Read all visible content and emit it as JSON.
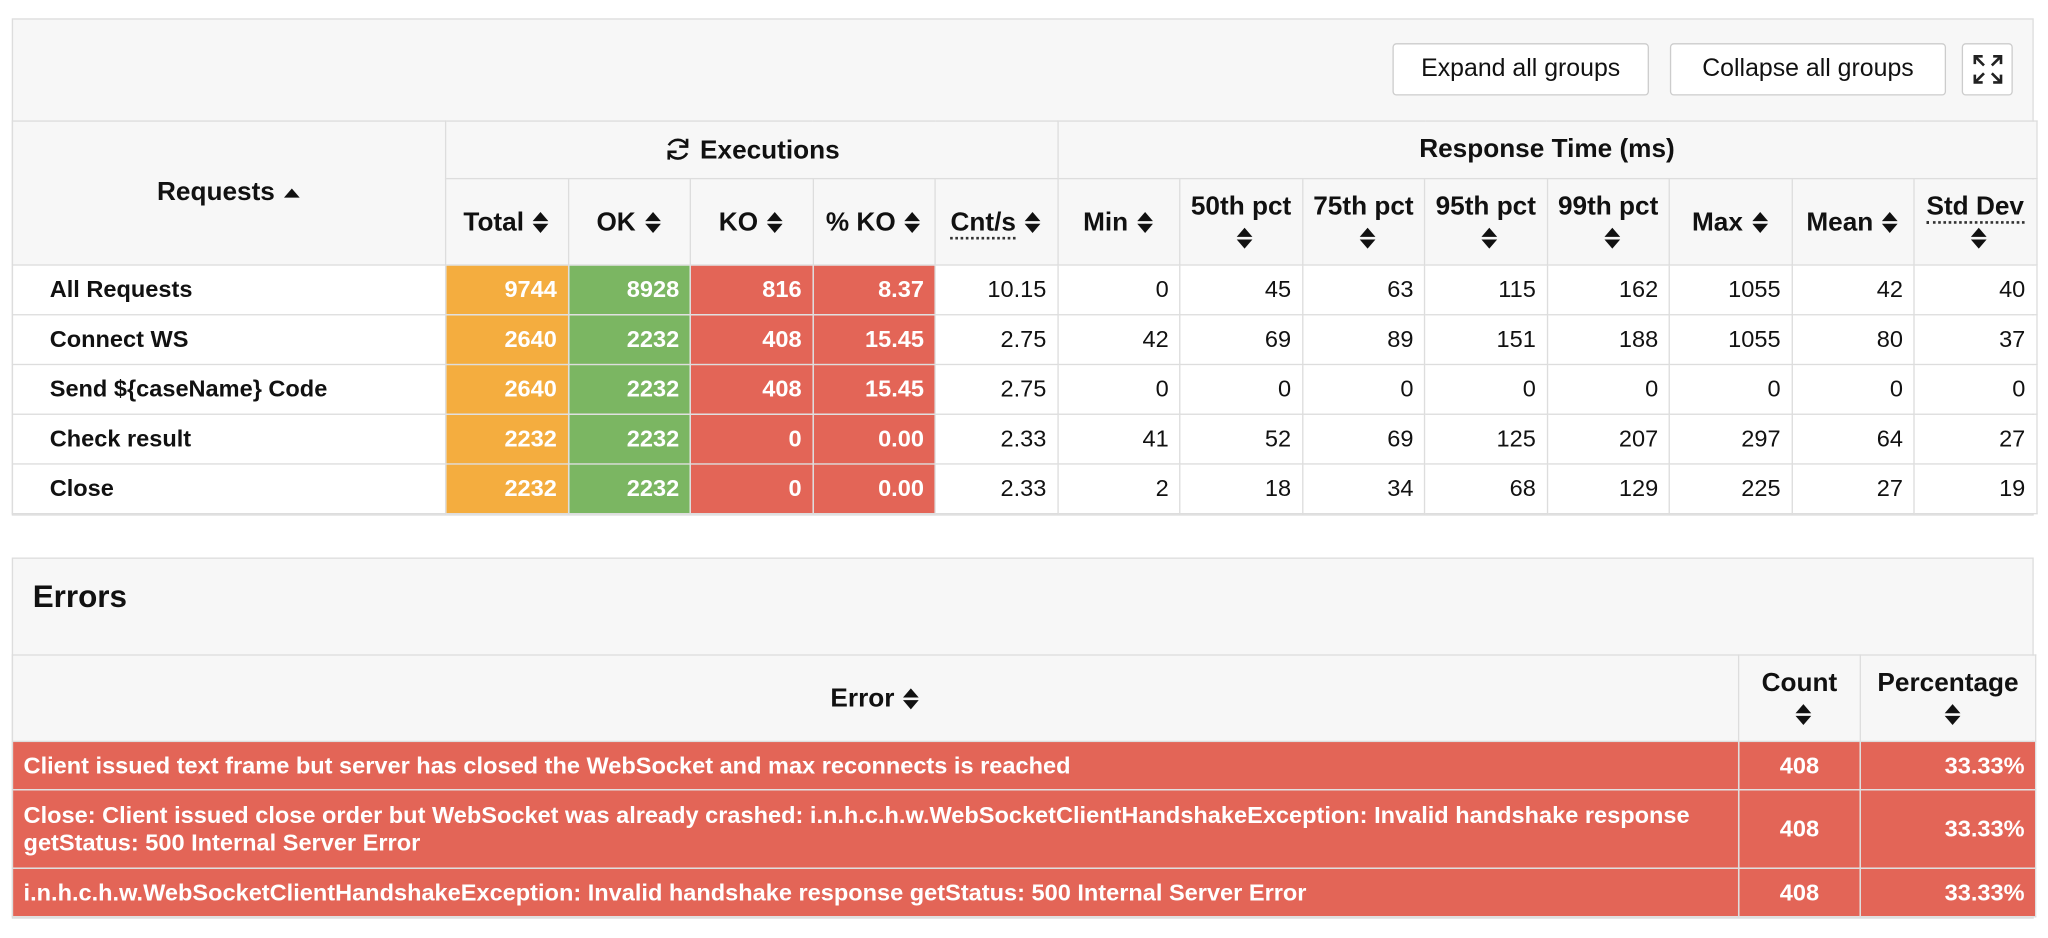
{
  "toolbar": {
    "buttons": [
      "Expand all groups",
      "Collapse all groups"
    ]
  },
  "stats": {
    "requests_header": "Requests",
    "groups": [
      "Executions",
      "Response Time (ms)"
    ],
    "columns": [
      "Total",
      "OK",
      "KO",
      "% KO",
      "Cnt/s",
      "Min",
      "50th pct",
      "75th pct",
      "95th pct",
      "99th pct",
      "Max",
      "Mean",
      "Std Dev"
    ],
    "rows": [
      {
        "name": "All Requests",
        "cells": [
          "9744",
          "8928",
          "816",
          "8.37",
          "10.15",
          "0",
          "45",
          "63",
          "115",
          "162",
          "1055",
          "42",
          "40"
        ]
      },
      {
        "name": "Connect WS",
        "cells": [
          "2640",
          "2232",
          "408",
          "15.45",
          "2.75",
          "42",
          "69",
          "89",
          "151",
          "188",
          "1055",
          "80",
          "37"
        ]
      },
      {
        "name": "Send ${caseName} Code",
        "cells": [
          "2640",
          "2232",
          "408",
          "15.45",
          "2.75",
          "0",
          "0",
          "0",
          "0",
          "0",
          "0",
          "0",
          "0"
        ]
      },
      {
        "name": "Check result",
        "cells": [
          "2232",
          "2232",
          "0",
          "0.00",
          "2.33",
          "41",
          "52",
          "69",
          "125",
          "207",
          "297",
          "64",
          "27"
        ]
      },
      {
        "name": "Close",
        "cells": [
          "2232",
          "2232",
          "0",
          "0.00",
          "2.33",
          "2",
          "18",
          "34",
          "68",
          "129",
          "225",
          "27",
          "19"
        ]
      }
    ]
  },
  "errors": {
    "title": "Errors",
    "columns": [
      "Error",
      "Count",
      "Percentage"
    ],
    "rows": [
      [
        "Client issued text frame but server has closed the WebSocket and max reconnects is reached",
        "408",
        "33.33%"
      ],
      [
        "Close: Client issued close order but WebSocket was already crashed: i.n.h.c.h.w.WebSocketClientHandshakeException: Invalid handshake response getStatus: 500 Internal Server Error",
        "408",
        "33.33%"
      ],
      [
        "i.n.h.c.h.w.WebSocketClientHandshakeException: Invalid handshake response getStatus: 500 Internal Server Error",
        "408",
        "33.33%"
      ]
    ]
  }
}
